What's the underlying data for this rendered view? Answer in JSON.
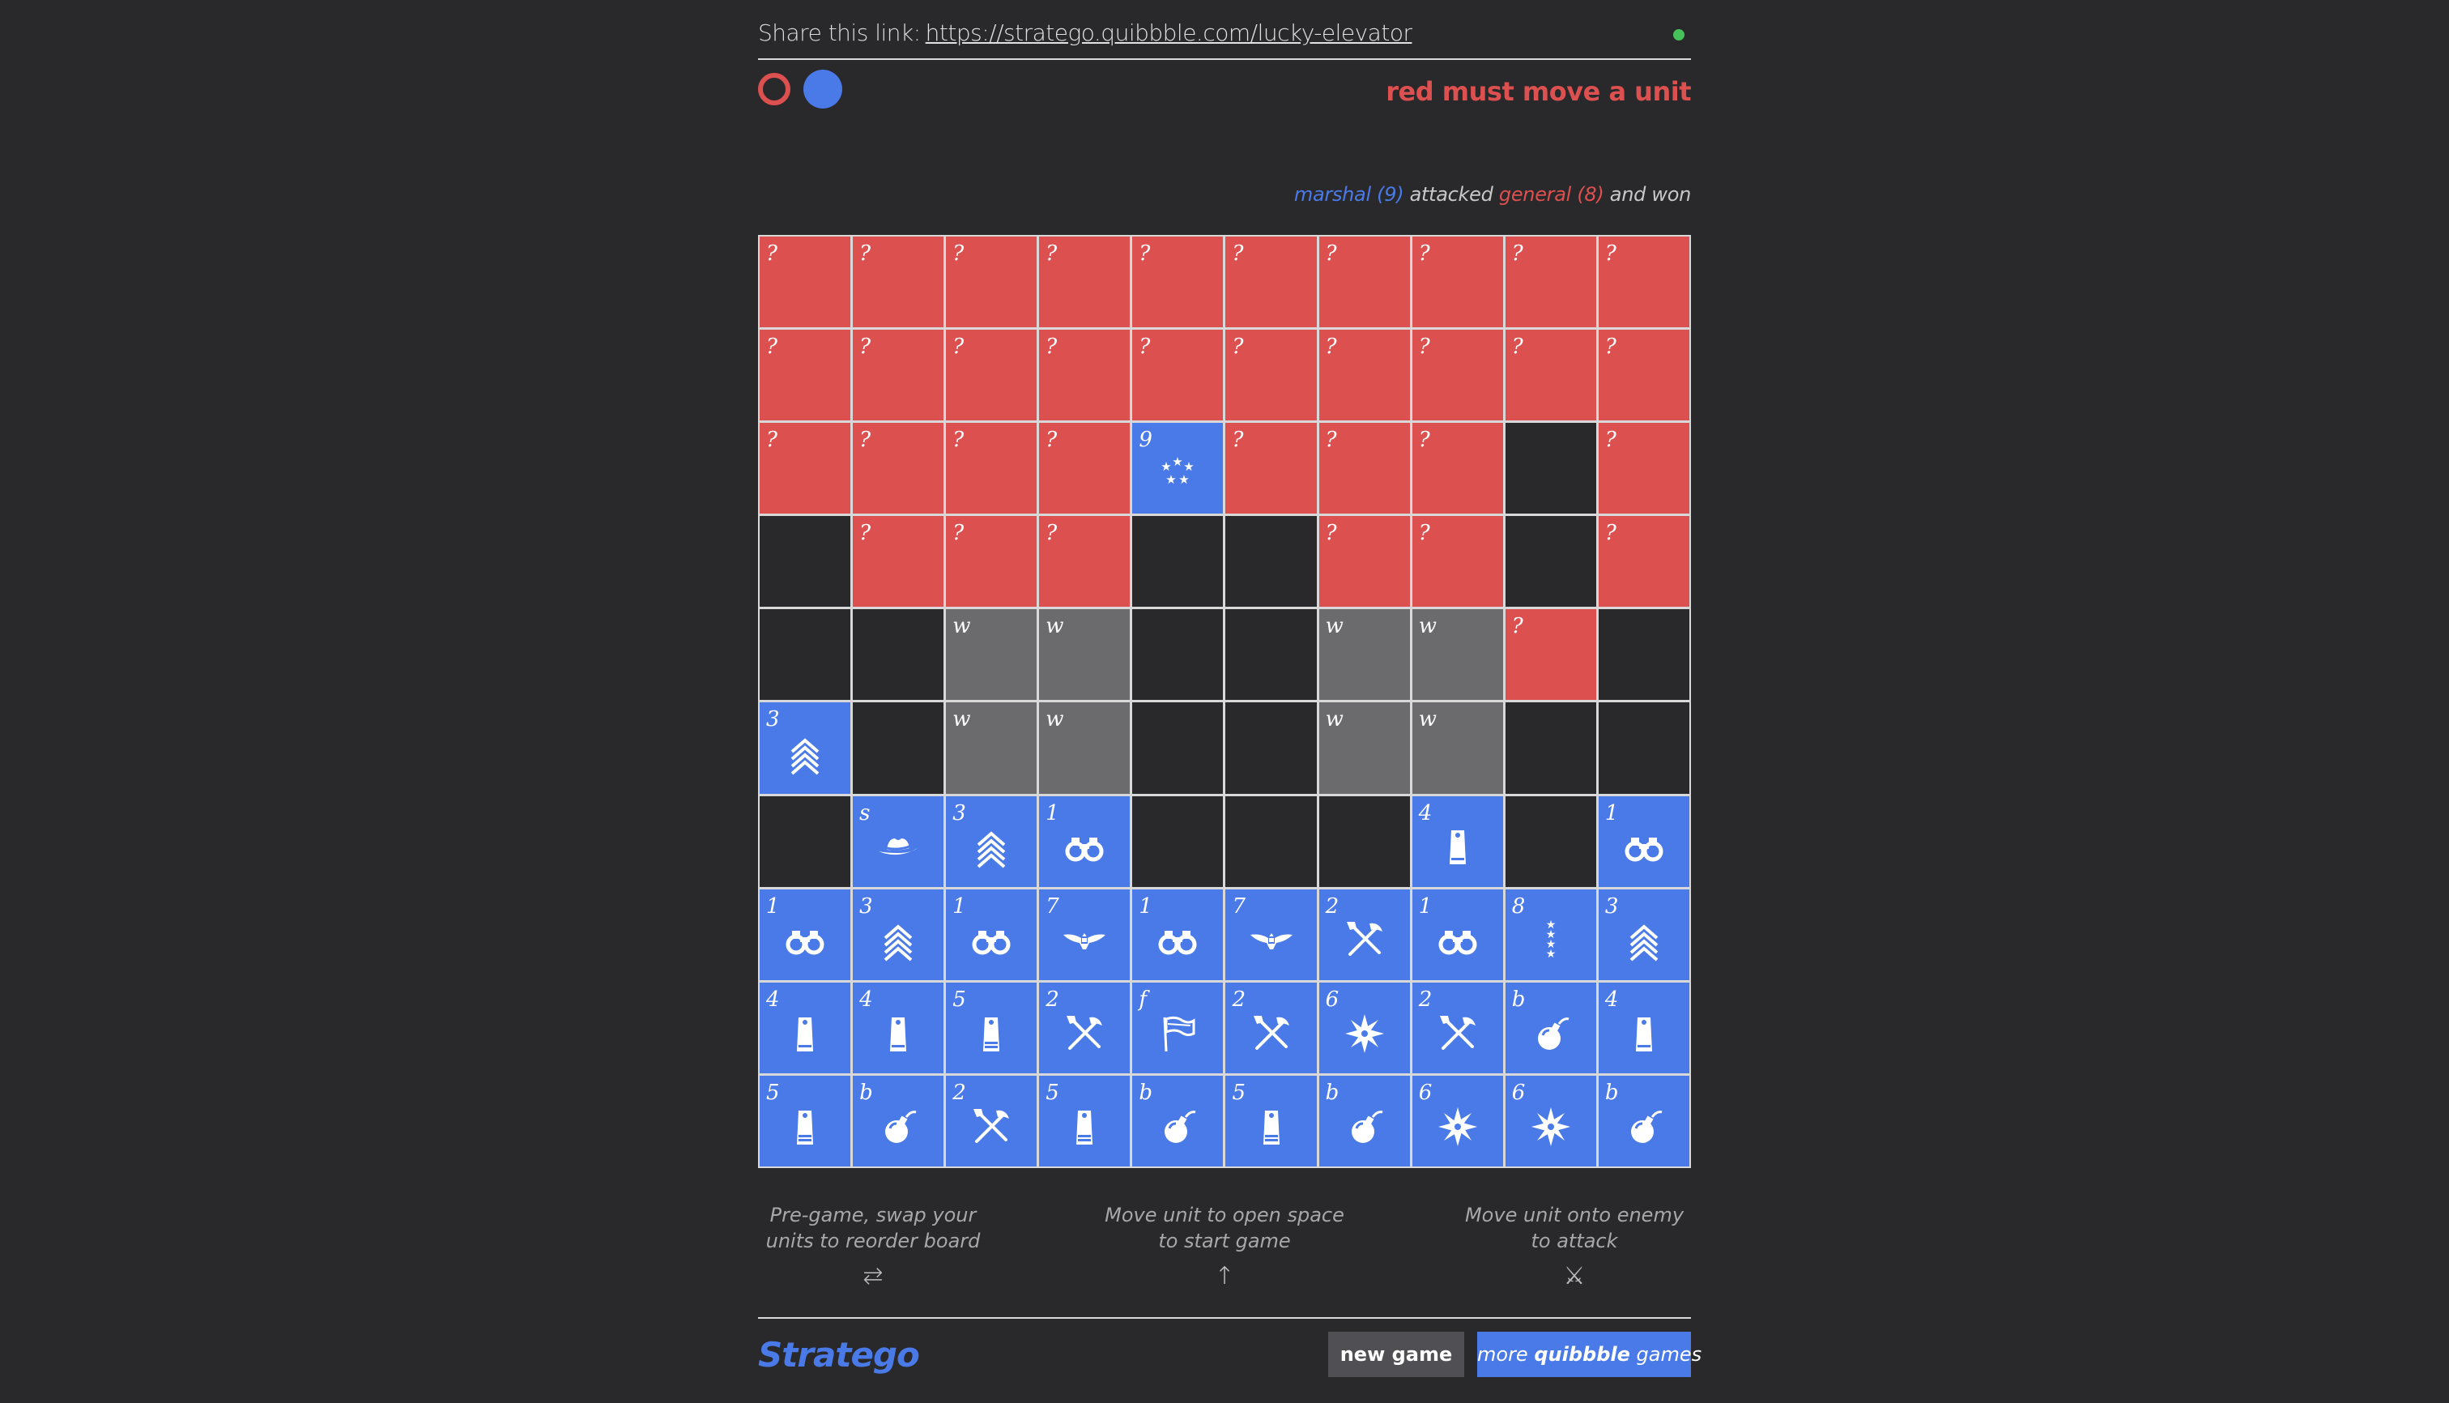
{
  "share": {
    "label": "Share this link:",
    "url": "https://stratego.quibbble.com/lucky-elevator"
  },
  "status": "red must move a unit",
  "last_move": {
    "attacker": "marshal (9)",
    "verb": "attacked",
    "defender": "general (8)",
    "result": "and won"
  },
  "colors": {
    "red": "#dd5050",
    "blue": "#4a7ae8",
    "water": "#6b6b6e",
    "empty": "#29282a",
    "online": "#46c25a"
  },
  "board": [
    [
      {
        "t": "red",
        "r": "?"
      },
      {
        "t": "red",
        "r": "?"
      },
      {
        "t": "red",
        "r": "?"
      },
      {
        "t": "red",
        "r": "?"
      },
      {
        "t": "red",
        "r": "?"
      },
      {
        "t": "red",
        "r": "?"
      },
      {
        "t": "red",
        "r": "?"
      },
      {
        "t": "red",
        "r": "?"
      },
      {
        "t": "red",
        "r": "?"
      },
      {
        "t": "red",
        "r": "?"
      }
    ],
    [
      {
        "t": "red",
        "r": "?"
      },
      {
        "t": "red",
        "r": "?"
      },
      {
        "t": "red",
        "r": "?"
      },
      {
        "t": "red",
        "r": "?"
      },
      {
        "t": "red",
        "r": "?"
      },
      {
        "t": "red",
        "r": "?"
      },
      {
        "t": "red",
        "r": "?"
      },
      {
        "t": "red",
        "r": "?"
      },
      {
        "t": "red",
        "r": "?"
      },
      {
        "t": "red",
        "r": "?"
      }
    ],
    [
      {
        "t": "red",
        "r": "?"
      },
      {
        "t": "red",
        "r": "?"
      },
      {
        "t": "red",
        "r": "?"
      },
      {
        "t": "red",
        "r": "?"
      },
      {
        "t": "blue",
        "r": "9",
        "i": "marshal"
      },
      {
        "t": "red",
        "r": "?"
      },
      {
        "t": "red",
        "r": "?"
      },
      {
        "t": "red",
        "r": "?"
      },
      {
        "t": "empty"
      },
      {
        "t": "red",
        "r": "?"
      }
    ],
    [
      {
        "t": "empty"
      },
      {
        "t": "red",
        "r": "?"
      },
      {
        "t": "red",
        "r": "?"
      },
      {
        "t": "red",
        "r": "?"
      },
      {
        "t": "empty"
      },
      {
        "t": "empty"
      },
      {
        "t": "red",
        "r": "?"
      },
      {
        "t": "red",
        "r": "?"
      },
      {
        "t": "empty"
      },
      {
        "t": "red",
        "r": "?"
      }
    ],
    [
      {
        "t": "empty"
      },
      {
        "t": "empty"
      },
      {
        "t": "water",
        "r": "w"
      },
      {
        "t": "water",
        "r": "w"
      },
      {
        "t": "empty"
      },
      {
        "t": "empty"
      },
      {
        "t": "water",
        "r": "w"
      },
      {
        "t": "water",
        "r": "w"
      },
      {
        "t": "red",
        "r": "?"
      },
      {
        "t": "empty"
      }
    ],
    [
      {
        "t": "blue",
        "r": "3",
        "i": "chevron"
      },
      {
        "t": "empty"
      },
      {
        "t": "water",
        "r": "w"
      },
      {
        "t": "water",
        "r": "w"
      },
      {
        "t": "empty"
      },
      {
        "t": "empty"
      },
      {
        "t": "water",
        "r": "w"
      },
      {
        "t": "water",
        "r": "w"
      },
      {
        "t": "empty"
      },
      {
        "t": "empty"
      }
    ],
    [
      {
        "t": "empty"
      },
      {
        "t": "blue",
        "r": "s",
        "i": "hat"
      },
      {
        "t": "blue",
        "r": "3",
        "i": "chevron"
      },
      {
        "t": "blue",
        "r": "1",
        "i": "binoculars"
      },
      {
        "t": "empty"
      },
      {
        "t": "empty"
      },
      {
        "t": "empty"
      },
      {
        "t": "blue",
        "r": "4",
        "i": "epaulette"
      },
      {
        "t": "empty"
      },
      {
        "t": "blue",
        "r": "1",
        "i": "binoculars"
      }
    ],
    [
      {
        "t": "blue",
        "r": "1",
        "i": "binoculars"
      },
      {
        "t": "blue",
        "r": "3",
        "i": "chevron"
      },
      {
        "t": "blue",
        "r": "1",
        "i": "binoculars"
      },
      {
        "t": "blue",
        "r": "7",
        "i": "eagle"
      },
      {
        "t": "blue",
        "r": "1",
        "i": "binoculars"
      },
      {
        "t": "blue",
        "r": "7",
        "i": "eagle"
      },
      {
        "t": "blue",
        "r": "2",
        "i": "tools"
      },
      {
        "t": "blue",
        "r": "1",
        "i": "binoculars"
      },
      {
        "t": "blue",
        "r": "8",
        "i": "stars"
      },
      {
        "t": "blue",
        "r": "3",
        "i": "chevron"
      }
    ],
    [
      {
        "t": "blue",
        "r": "4",
        "i": "epaulette"
      },
      {
        "t": "blue",
        "r": "4",
        "i": "epaulette"
      },
      {
        "t": "blue",
        "r": "5",
        "i": "epaulette2"
      },
      {
        "t": "blue",
        "r": "2",
        "i": "tools"
      },
      {
        "t": "blue",
        "r": "f",
        "i": "flag"
      },
      {
        "t": "blue",
        "r": "2",
        "i": "tools"
      },
      {
        "t": "blue",
        "r": "6",
        "i": "burst"
      },
      {
        "t": "blue",
        "r": "2",
        "i": "tools"
      },
      {
        "t": "blue",
        "r": "b",
        "i": "bomb"
      },
      {
        "t": "blue",
        "r": "4",
        "i": "epaulette"
      }
    ],
    [
      {
        "t": "blue",
        "r": "5",
        "i": "epaulette2"
      },
      {
        "t": "blue",
        "r": "b",
        "i": "bomb"
      },
      {
        "t": "blue",
        "r": "2",
        "i": "tools"
      },
      {
        "t": "blue",
        "r": "5",
        "i": "epaulette2"
      },
      {
        "t": "blue",
        "r": "b",
        "i": "bomb"
      },
      {
        "t": "blue",
        "r": "5",
        "i": "epaulette2"
      },
      {
        "t": "blue",
        "r": "b",
        "i": "bomb"
      },
      {
        "t": "blue",
        "r": "6",
        "i": "burst"
      },
      {
        "t": "blue",
        "r": "6",
        "i": "burst"
      },
      {
        "t": "blue",
        "r": "b",
        "i": "bomb"
      }
    ]
  ],
  "help": {
    "swap": "Pre-game, swap your units to reorder board",
    "swap_icon": "⇄",
    "move": "Move unit to open space to start game",
    "move_icon": "↑",
    "attack": "Move unit onto enemy to attack",
    "attack_icon": "⚔"
  },
  "footer": {
    "logo": "Stratego",
    "new_game": "new game",
    "more_pre": "more",
    "more_brand": "quibbble",
    "more_post": "games"
  }
}
